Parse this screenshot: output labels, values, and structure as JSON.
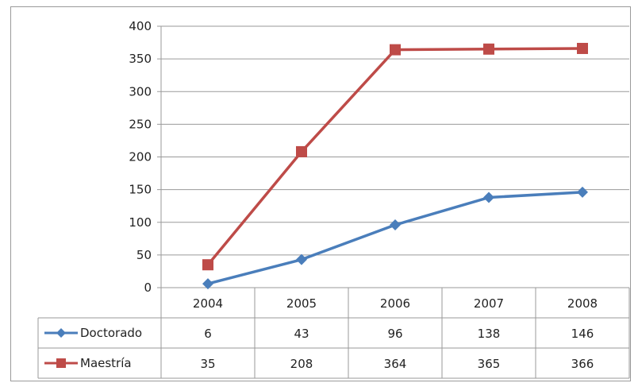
{
  "chart_data": {
    "type": "line",
    "title": "",
    "xlabel": "",
    "ylabel": "",
    "categories": [
      "2004",
      "2005",
      "2006",
      "2007",
      "2008"
    ],
    "ylim": [
      0,
      400
    ],
    "yticks": [
      "0",
      "50",
      "100",
      "150",
      "200",
      "250",
      "300",
      "350",
      "400"
    ],
    "grid": true,
    "legend": "data-table-left",
    "series": [
      {
        "name": "Doctorado",
        "values": [
          6,
          43,
          96,
          138,
          146
        ],
        "color": "#4a7ebb",
        "marker": "diamond",
        "labels": [
          "6",
          "43",
          "96",
          "138",
          "146"
        ]
      },
      {
        "name": "Maestría",
        "values": [
          35,
          208,
          364,
          365,
          366
        ],
        "color": "#be4b48",
        "marker": "square",
        "labels": [
          "35",
          "208",
          "364",
          "365",
          "366"
        ]
      }
    ]
  }
}
